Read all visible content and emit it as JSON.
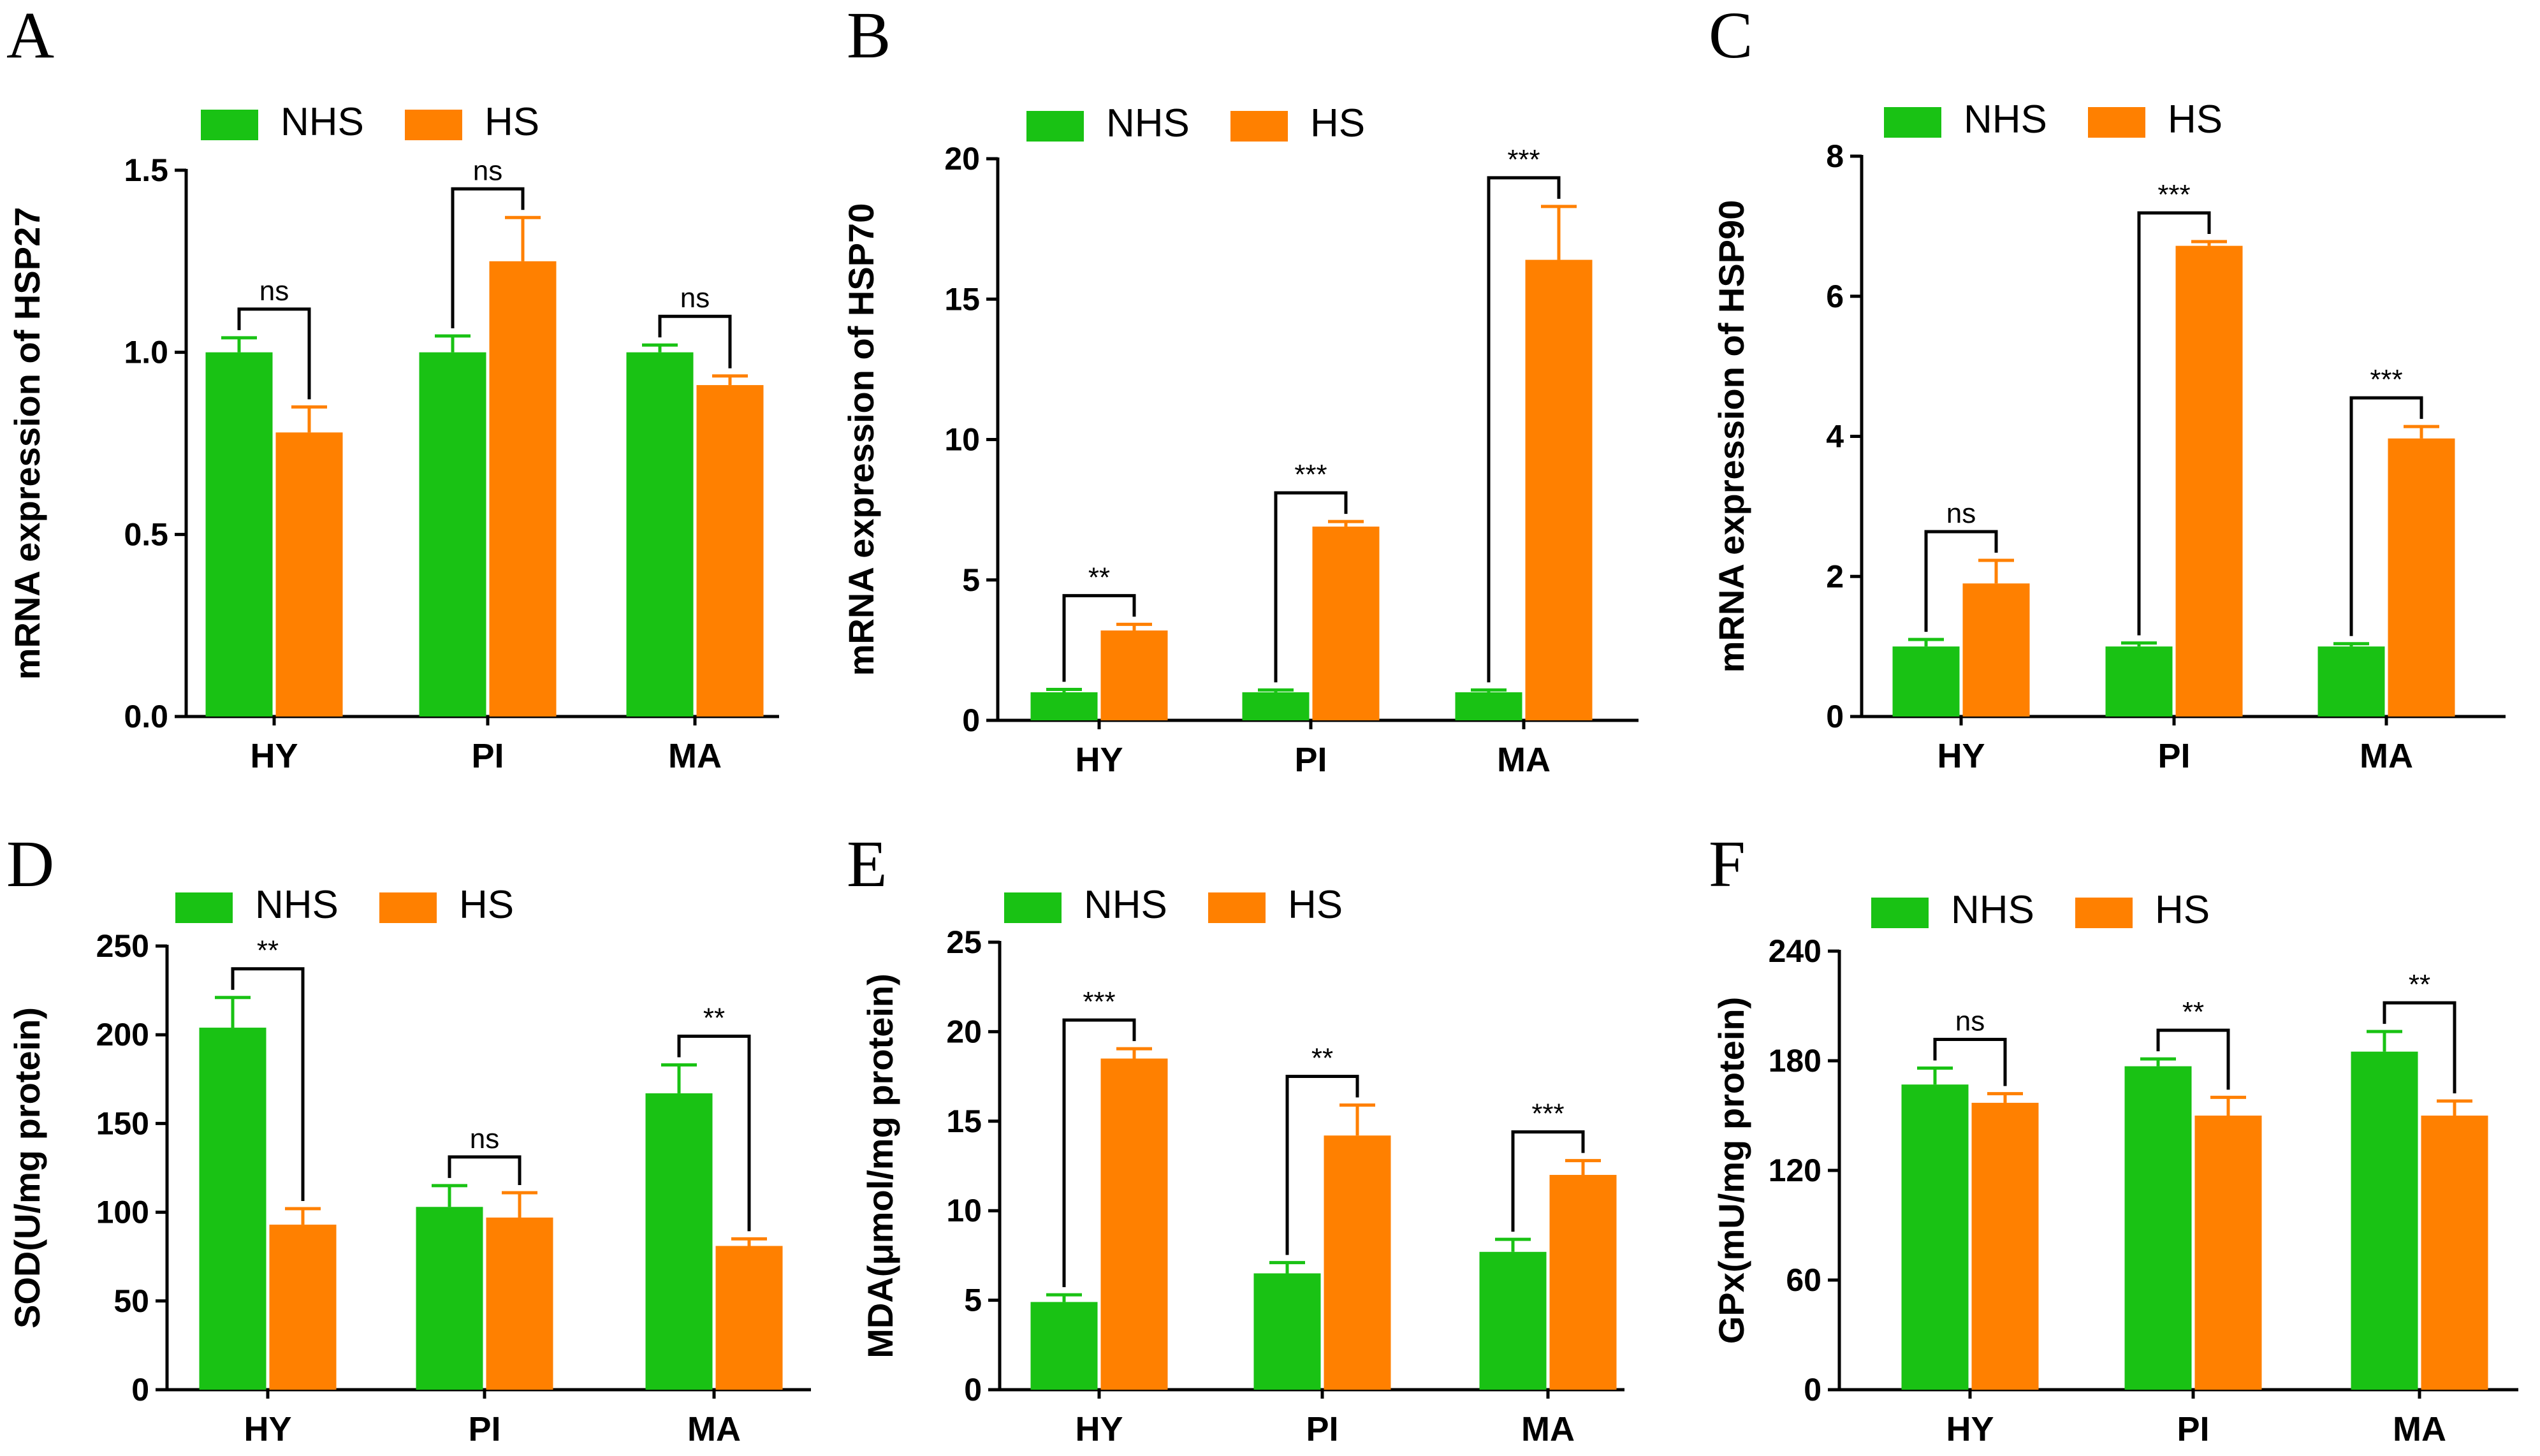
{
  "colors": {
    "NHS": "#19c214",
    "HS": "#ff8000",
    "axis": "#000000"
  },
  "chart_data": [
    {
      "panel": "A",
      "type": "bar",
      "ylabel": "mRNA expression of HSP27",
      "categories": [
        "HY",
        "PI",
        "MA"
      ],
      "ylim": [
        0,
        1.5
      ],
      "yticks": [
        0.0,
        0.5,
        1.0,
        1.5
      ],
      "ytick_labels": [
        "0.0",
        "0.5",
        "1.0",
        "1.5"
      ],
      "legend": [
        "NHS",
        "HS"
      ],
      "series": [
        {
          "name": "NHS",
          "values": [
            1.0,
            1.0,
            1.0
          ],
          "errors": [
            0.04,
            0.045,
            0.02
          ]
        },
        {
          "name": "HS",
          "values": [
            0.78,
            1.25,
            0.91
          ],
          "errors": [
            0.07,
            0.12,
            0.025
          ]
        }
      ],
      "significance": [
        "ns",
        "ns",
        "ns"
      ]
    },
    {
      "panel": "B",
      "type": "bar",
      "ylabel": "mRNA expression of HSP70",
      "categories": [
        "HY",
        "PI",
        "MA"
      ],
      "ylim": [
        0,
        20
      ],
      "yticks": [
        0,
        5,
        10,
        15,
        20
      ],
      "ytick_labels": [
        "0",
        "5",
        "10",
        "15",
        "20"
      ],
      "legend": [
        "NHS",
        "HS"
      ],
      "series": [
        {
          "name": "NHS",
          "values": [
            1.0,
            1.0,
            1.0
          ],
          "errors": [
            0.1,
            0.08,
            0.08
          ]
        },
        {
          "name": "HS",
          "values": [
            3.2,
            6.9,
            16.4
          ],
          "errors": [
            0.22,
            0.18,
            1.9
          ]
        }
      ],
      "significance": [
        "**",
        "***",
        "***"
      ]
    },
    {
      "panel": "C",
      "type": "bar",
      "ylabel": "mRNA expression of HSP90",
      "categories": [
        "HY",
        "PI",
        "MA"
      ],
      "ylim": [
        0,
        8
      ],
      "yticks": [
        0,
        2,
        4,
        6,
        8
      ],
      "ytick_labels": [
        "0",
        "2",
        "4",
        "6",
        "8"
      ],
      "legend": [
        "NHS",
        "HS"
      ],
      "series": [
        {
          "name": "NHS",
          "values": [
            1.0,
            1.0,
            1.0
          ],
          "errors": [
            0.1,
            0.05,
            0.04
          ]
        },
        {
          "name": "HS",
          "values": [
            1.9,
            6.72,
            3.97
          ],
          "errors": [
            0.33,
            0.06,
            0.17
          ]
        }
      ],
      "significance": [
        "ns",
        "***",
        "***"
      ]
    },
    {
      "panel": "D",
      "type": "bar",
      "ylabel": "SOD(U/mg protein)",
      "categories": [
        "HY",
        "PI",
        "MA"
      ],
      "ylim": [
        0,
        250
      ],
      "yticks": [
        0,
        50,
        100,
        150,
        200,
        250
      ],
      "ytick_labels": [
        "0",
        "50",
        "100",
        "150",
        "200",
        "250"
      ],
      "legend": [
        "NHS",
        "HS"
      ],
      "series": [
        {
          "name": "NHS",
          "values": [
            204,
            103,
            167
          ],
          "errors": [
            17,
            12,
            16
          ]
        },
        {
          "name": "HS",
          "values": [
            93,
            97,
            81
          ],
          "errors": [
            9,
            14,
            4
          ]
        }
      ],
      "significance": [
        "**",
        "ns",
        "**"
      ]
    },
    {
      "panel": "E",
      "type": "bar",
      "ylabel": "MDA(μmol/mg protein)",
      "categories": [
        "HY",
        "PI",
        "MA"
      ],
      "ylim": [
        0,
        25
      ],
      "yticks": [
        0,
        5,
        10,
        15,
        20,
        25
      ],
      "ytick_labels": [
        "0",
        "5",
        "10",
        "15",
        "20",
        "25"
      ],
      "legend": [
        "NHS",
        "HS"
      ],
      "series": [
        {
          "name": "NHS",
          "values": [
            4.9,
            6.5,
            7.7
          ],
          "errors": [
            0.4,
            0.6,
            0.7
          ]
        },
        {
          "name": "HS",
          "values": [
            18.5,
            14.2,
            12.0
          ],
          "errors": [
            0.55,
            1.7,
            0.8
          ]
        }
      ],
      "significance": [
        "***",
        "**",
        "***"
      ]
    },
    {
      "panel": "F",
      "type": "bar",
      "ylabel": "GPx(mU/mg protein)",
      "categories": [
        "HY",
        "PI",
        "MA"
      ],
      "ylim": [
        0,
        240
      ],
      "yticks": [
        0,
        60,
        120,
        180,
        240
      ],
      "ytick_labels": [
        "0",
        "60",
        "120",
        "180",
        "240"
      ],
      "legend": [
        "NHS",
        "HS"
      ],
      "series": [
        {
          "name": "NHS",
          "values": [
            167,
            177,
            185
          ],
          "errors": [
            9,
            4,
            11
          ]
        },
        {
          "name": "HS",
          "values": [
            157,
            150,
            150
          ],
          "errors": [
            5,
            10,
            8
          ]
        }
      ],
      "significance": [
        "ns",
        "**",
        "**"
      ]
    }
  ]
}
